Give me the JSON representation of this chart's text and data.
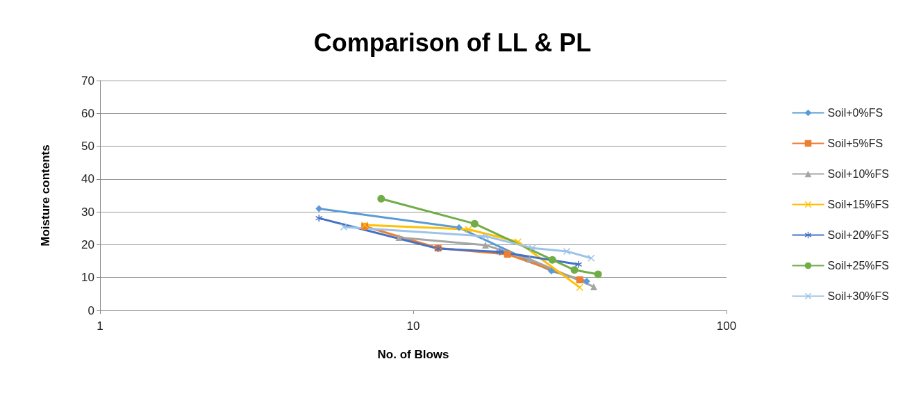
{
  "chart_data": {
    "type": "line",
    "title": "Comparison of LL & PL",
    "xlabel": "No. of Blows",
    "ylabel": "Moisture contents",
    "log": "x",
    "xlim": [
      1,
      100
    ],
    "xticks": [
      1,
      10,
      100
    ],
    "ylim": [
      0,
      70
    ],
    "yticks": [
      0,
      10,
      20,
      30,
      40,
      50,
      60,
      70
    ],
    "grid": "y",
    "legend": "right",
    "series": [
      {
        "name": "Soil+0%FS",
        "color": "#5b9bd5",
        "marker": "diamond",
        "x": [
          5,
          14,
          27.6,
          35.8
        ],
        "values": [
          31,
          25.2,
          12,
          8.9
        ]
      },
      {
        "name": "Soil+5%FS",
        "color": "#ed7d31",
        "marker": "square",
        "x": [
          7,
          12,
          20,
          34
        ],
        "values": [
          25.6,
          19,
          17.1,
          9.3
        ]
      },
      {
        "name": "Soil+10%FS",
        "color": "#a5a5a5",
        "marker": "triangle",
        "x": [
          9,
          17,
          23.5,
          37.7
        ],
        "values": [
          22.2,
          19.9,
          15.6,
          7.2
        ]
      },
      {
        "name": "Soil+15%FS",
        "color": "#ffc000",
        "marker": "cross",
        "x": [
          7,
          15,
          21.6,
          34
        ],
        "values": [
          26,
          24.7,
          20.9,
          7
        ]
      },
      {
        "name": "Soil+20%FS",
        "color": "#4472c4",
        "marker": "star",
        "x": [
          5,
          12,
          18.9,
          33.7
        ],
        "values": [
          28.1,
          18.8,
          17.8,
          14
        ]
      },
      {
        "name": "Soil+25%FS",
        "color": "#70ad47",
        "marker": "circle",
        "x": [
          7.9,
          15.7,
          27.8,
          32.7,
          38.9
        ],
        "values": [
          34,
          26.4,
          15.4,
          12.3,
          11
        ]
      },
      {
        "name": "Soil+30%FS",
        "color": "#9dc3e6",
        "marker": "cross",
        "x": [
          6,
          17,
          24,
          30.9,
          37
        ],
        "values": [
          25.4,
          22.6,
          19,
          18,
          15.9
        ]
      }
    ]
  }
}
